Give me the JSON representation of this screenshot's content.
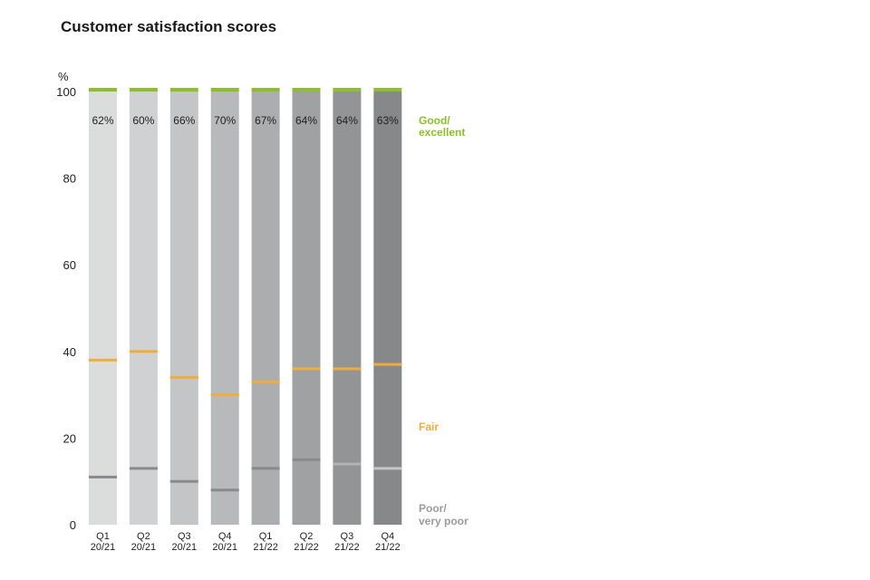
{
  "chart_data": {
    "type": "bar",
    "title": "Customer satisfaction scores",
    "ylabel": "%",
    "ylim": [
      0,
      100
    ],
    "yticks": [
      0,
      20,
      40,
      60,
      80,
      100
    ],
    "categories": [
      {
        "q": "Q1",
        "y": "20/21"
      },
      {
        "q": "Q2",
        "y": "20/21"
      },
      {
        "q": "Q3",
        "y": "20/21"
      },
      {
        "q": "Q4",
        "y": "20/21"
      },
      {
        "q": "Q1",
        "y": "21/22"
      },
      {
        "q": "Q2",
        "y": "21/22"
      },
      {
        "q": "Q3",
        "y": "21/22"
      },
      {
        "q": "Q4",
        "y": "21/22"
      }
    ],
    "good_excellent_labels": [
      "62%",
      "60%",
      "66%",
      "70%",
      "67%",
      "64%",
      "64%",
      "63%"
    ],
    "fair_line": [
      38,
      40,
      34,
      30,
      33,
      36,
      36,
      37
    ],
    "poor_line": [
      11,
      13,
      10,
      8,
      13,
      15,
      14,
      13
    ],
    "bar_colors": [
      "#dbdcdc",
      "#d0d1d2",
      "#c4c5c6",
      "#b8b9ba",
      "#abadae",
      "#9fa1a2",
      "#929495",
      "#868889"
    ],
    "poor_line_colors": [
      "#888a8c",
      "#888a8c",
      "#888a8c",
      "#888a8c",
      "#888a8c",
      "#888a8c",
      "#b0b2b4",
      "#c4c6c8"
    ],
    "legend": {
      "good_excellent": [
        "Good/",
        "excellent"
      ],
      "fair": "Fair",
      "poor": [
        "Poor/",
        "very poor"
      ]
    },
    "colors": {
      "green": "#8cbf2b",
      "orange": "#f0ad3c",
      "legend_gray": "#999b9d"
    }
  }
}
